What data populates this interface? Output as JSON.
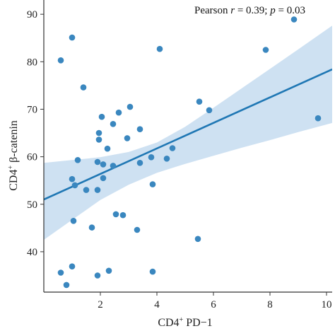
{
  "chart_data": {
    "type": "scatter",
    "title": "",
    "xlabel": {
      "base": "CD4",
      "sup": "+",
      "rest": " PD−1"
    },
    "ylabel": {
      "base": "CD4",
      "sup": "+",
      "rest": " β-catenin"
    },
    "xlim": [
      0,
      10.2
    ],
    "ylim": [
      31.5,
      93
    ],
    "x_ticks": [
      2,
      4,
      6,
      8,
      10
    ],
    "y_ticks": [
      40,
      50,
      60,
      70,
      80,
      90
    ],
    "annotation": {
      "prefix": "Pearson ",
      "r": "r",
      "r_value": " = 0.39; ",
      "p": "p",
      "p_value": " = 0.03"
    },
    "regression": {
      "x": [
        0,
        10.2
      ],
      "y": [
        51.0,
        78.4
      ]
    },
    "ci_band": {
      "x": [
        0,
        1,
        2,
        3,
        4,
        5,
        6,
        7,
        8,
        9,
        10.2
      ],
      "upper": [
        58.7,
        59.3,
        59.9,
        61.0,
        63.0,
        66.3,
        70.3,
        74.4,
        78.5,
        82.6,
        87.6
      ],
      "lower": [
        42.5,
        46.7,
        50.9,
        54.1,
        56.6,
        58.5,
        60.2,
        61.9,
        63.5,
        65.2,
        67.1
      ]
    },
    "colors": {
      "points": "#3a87bf",
      "line": "#1f77b4",
      "band": "#c6dcf0"
    },
    "points": [
      [
        0.6,
        80.3
      ],
      [
        1.0,
        85.1
      ],
      [
        1.4,
        74.6
      ],
      [
        0.6,
        35.6
      ],
      [
        0.8,
        33.0
      ],
      [
        1.0,
        36.9
      ],
      [
        1.0,
        55.3
      ],
      [
        1.1,
        54.0
      ],
      [
        1.05,
        46.5
      ],
      [
        1.2,
        59.3
      ],
      [
        1.5,
        53.0
      ],
      [
        1.7,
        45.1
      ],
      [
        1.9,
        35.0
      ],
      [
        1.9,
        53.0
      ],
      [
        1.9,
        58.9
      ],
      [
        1.95,
        63.6
      ],
      [
        1.95,
        65.0
      ],
      [
        2.05,
        68.4
      ],
      [
        2.1,
        58.4
      ],
      [
        2.1,
        55.5
      ],
      [
        2.25,
        61.7
      ],
      [
        2.3,
        36.0
      ],
      [
        2.45,
        66.9
      ],
      [
        2.45,
        58.1
      ],
      [
        2.55,
        47.9
      ],
      [
        2.65,
        69.3
      ],
      [
        2.8,
        47.7
      ],
      [
        2.95,
        63.9
      ],
      [
        3.05,
        70.5
      ],
      [
        3.3,
        44.6
      ],
      [
        3.4,
        58.7
      ],
      [
        3.4,
        65.8
      ],
      [
        3.8,
        59.9
      ],
      [
        3.85,
        54.2
      ],
      [
        3.85,
        35.8
      ],
      [
        4.1,
        82.7
      ],
      [
        4.35,
        59.6
      ],
      [
        4.55,
        61.8
      ],
      [
        5.45,
        42.7
      ],
      [
        5.5,
        71.6
      ],
      [
        5.85,
        69.8
      ],
      [
        7.85,
        82.5
      ],
      [
        8.85,
        88.9
      ],
      [
        9.7,
        68.1
      ]
    ]
  }
}
